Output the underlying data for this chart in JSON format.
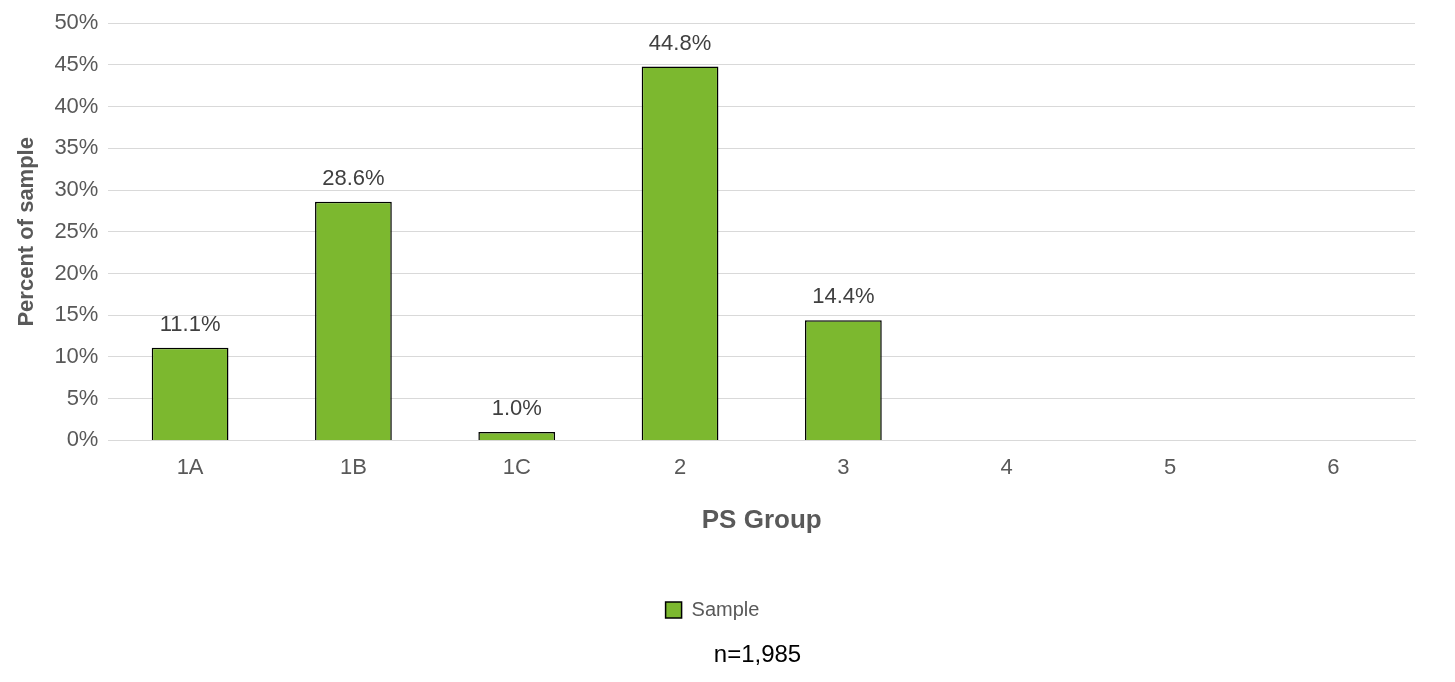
{
  "chart_data": {
    "type": "bar",
    "xlabel": "PS Group",
    "ylabel": "Percent of sample",
    "categories": [
      "1A",
      "1B",
      "1C",
      "2",
      "3",
      "4",
      "5",
      "6"
    ],
    "series": [
      {
        "name": "Sample",
        "color": "#7cb82f",
        "values": [
          11.1,
          28.6,
          1.0,
          44.8,
          14.4,
          null,
          null,
          null
        ],
        "value_labels": [
          "11.1%",
          "28.6%",
          "1.0%",
          "44.8%",
          "14.4%",
          null,
          null,
          null
        ]
      }
    ],
    "ylim": [
      0,
      50
    ],
    "yticks": [
      {
        "value": 0,
        "label": "0%"
      },
      {
        "value": 5,
        "label": "5%"
      },
      {
        "value": 10,
        "label": "10%"
      },
      {
        "value": 15,
        "label": "15%"
      },
      {
        "value": 20,
        "label": "20%"
      },
      {
        "value": 25,
        "label": "25%"
      },
      {
        "value": 30,
        "label": "30%"
      },
      {
        "value": 35,
        "label": "35%"
      },
      {
        "value": 40,
        "label": "40%"
      },
      {
        "value": 45,
        "label": "45%"
      },
      {
        "value": 50,
        "label": "50%"
      }
    ],
    "grid": "y",
    "legend": "bottom",
    "annotations": [
      "n=1,985"
    ]
  }
}
